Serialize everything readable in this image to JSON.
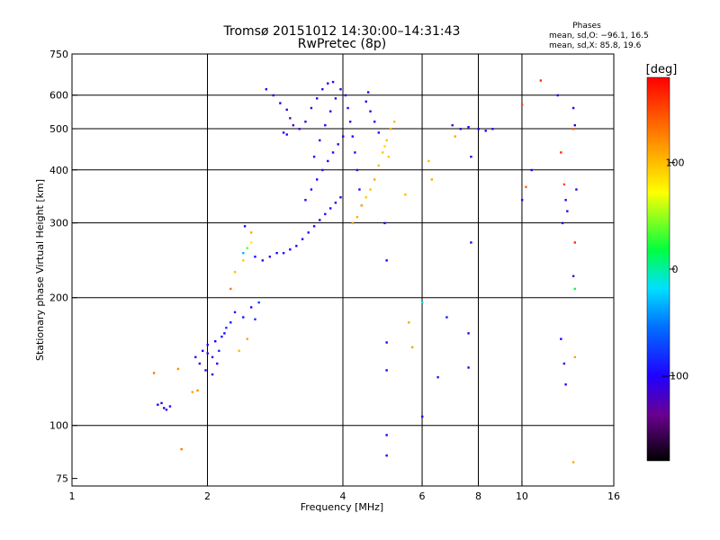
{
  "chart_data": {
    "type": "scatter",
    "title": "Tromsø 20151012 14:30:00–14:31:43",
    "subtitle": "RwPretec (8p)",
    "stats": {
      "heading": "Phases",
      "line1": "mean, sd,O: −96.1, 16.5",
      "line2": "mean, sd,X:  85.8, 19.6"
    },
    "xlabel": "Frequency [MHz]",
    "ylabel": "Stationary phase Virtual Height [km]",
    "xscale": "log",
    "yscale": "log",
    "xlim": [
      1,
      16
    ],
    "ylim": [
      72,
      750
    ],
    "xticks": [
      1,
      2,
      4,
      6,
      8,
      10,
      16
    ],
    "yticks": [
      75,
      100,
      200,
      300,
      400,
      500,
      600,
      750
    ],
    "xgrid": [
      2,
      4,
      6,
      8,
      10
    ],
    "ygrid": [
      100,
      200,
      300,
      400,
      500,
      600
    ],
    "grid": true,
    "colorbar": {
      "label": "[deg]",
      "range": [
        -180,
        180
      ],
      "ticks": [
        100,
        0,
        -100
      ],
      "colormap": "rainbow: black → purple → blue → cyan → green → yellow → red"
    },
    "series": [
      {
        "points": [
          [
            1.55,
            112,
            -100
          ],
          [
            1.6,
            110,
            -105
          ],
          [
            1.65,
            111,
            -98
          ],
          [
            1.58,
            113,
            -110
          ],
          [
            1.62,
            109,
            -95
          ],
          [
            1.85,
            120,
            110
          ],
          [
            1.9,
            121,
            120
          ],
          [
            1.75,
            88,
            130
          ],
          [
            1.52,
            133,
            130
          ],
          [
            1.72,
            136,
            120
          ],
          [
            1.88,
            145,
            -95
          ],
          [
            1.95,
            150,
            -100
          ],
          [
            2.0,
            148,
            -110
          ],
          [
            2.05,
            145,
            -90
          ],
          [
            2.1,
            140,
            -100
          ],
          [
            1.92,
            140,
            -105
          ],
          [
            2.0,
            155,
            -95
          ],
          [
            2.08,
            158,
            -100
          ],
          [
            2.15,
            162,
            -90
          ],
          [
            1.98,
            135,
            -100
          ],
          [
            2.05,
            132,
            -110
          ],
          [
            2.12,
            150,
            -85
          ],
          [
            2.2,
            170,
            -80
          ],
          [
            2.25,
            175,
            -95
          ],
          [
            2.18,
            165,
            -100
          ],
          [
            2.3,
            185,
            -90
          ],
          [
            2.4,
            180,
            -95
          ],
          [
            2.5,
            190,
            -100
          ],
          [
            2.55,
            178,
            -80
          ],
          [
            2.6,
            195,
            -75
          ],
          [
            2.45,
            160,
            110
          ],
          [
            2.35,
            150,
            100
          ],
          [
            2.25,
            210,
            130
          ],
          [
            2.3,
            230,
            100
          ],
          [
            2.4,
            245,
            95
          ],
          [
            2.4,
            255,
            -30
          ],
          [
            2.45,
            262,
            40
          ],
          [
            2.5,
            270,
            80
          ],
          [
            2.5,
            285,
            110
          ],
          [
            2.42,
            295,
            -100
          ],
          [
            2.55,
            250,
            -100
          ],
          [
            2.65,
            245,
            -110
          ],
          [
            2.75,
            250,
            -105
          ],
          [
            2.85,
            255,
            -100
          ],
          [
            2.95,
            255,
            -95
          ],
          [
            3.05,
            260,
            -100
          ],
          [
            3.15,
            265,
            -105
          ],
          [
            3.25,
            275,
            -100
          ],
          [
            3.35,
            285,
            -95
          ],
          [
            3.45,
            295,
            -100
          ],
          [
            3.55,
            305,
            -105
          ],
          [
            3.65,
            315,
            -100
          ],
          [
            3.75,
            325,
            -95
          ],
          [
            3.85,
            335,
            -100
          ],
          [
            3.95,
            345,
            -105
          ],
          [
            3.3,
            340,
            -100
          ],
          [
            3.4,
            360,
            -110
          ],
          [
            3.5,
            380,
            -100
          ],
          [
            3.6,
            400,
            -95
          ],
          [
            3.7,
            420,
            -105
          ],
          [
            3.8,
            440,
            -100
          ],
          [
            3.9,
            460,
            -110
          ],
          [
            4.0,
            480,
            -100
          ],
          [
            3.45,
            430,
            -105
          ],
          [
            3.55,
            470,
            -100
          ],
          [
            3.65,
            510,
            -105
          ],
          [
            3.75,
            550,
            -100
          ],
          [
            3.85,
            590,
            -110
          ],
          [
            3.95,
            620,
            -100
          ],
          [
            4.05,
            600,
            -105
          ],
          [
            4.1,
            560,
            -100
          ],
          [
            4.15,
            520,
            -95
          ],
          [
            4.2,
            480,
            -100
          ],
          [
            4.25,
            440,
            -105
          ],
          [
            4.3,
            400,
            -100
          ],
          [
            4.35,
            360,
            -95
          ],
          [
            4.4,
            330,
            -100
          ],
          [
            4.2,
            300,
            110
          ],
          [
            4.3,
            310,
            105
          ],
          [
            4.4,
            330,
            100
          ],
          [
            4.5,
            345,
            95
          ],
          [
            4.6,
            360,
            100
          ],
          [
            4.7,
            380,
            110
          ],
          [
            4.8,
            410,
            100
          ],
          [
            4.9,
            440,
            95
          ],
          [
            5.0,
            470,
            100
          ],
          [
            5.1,
            500,
            105
          ],
          [
            5.2,
            520,
            100
          ],
          [
            4.95,
            455,
            90
          ],
          [
            5.05,
            430,
            95
          ],
          [
            2.7,
            620,
            -100
          ],
          [
            2.8,
            600,
            -105
          ],
          [
            2.9,
            575,
            -100
          ],
          [
            3.0,
            555,
            -110
          ],
          [
            3.05,
            530,
            -130
          ],
          [
            3.1,
            510,
            -125
          ],
          [
            3.2,
            500,
            -120
          ],
          [
            3.3,
            520,
            -115
          ],
          [
            3.4,
            560,
            -120
          ],
          [
            3.5,
            590,
            -110
          ],
          [
            3.6,
            620,
            -105
          ],
          [
            3.7,
            640,
            -100
          ],
          [
            3.8,
            645,
            -95
          ],
          [
            2.95,
            490,
            -100
          ],
          [
            3.0,
            485,
            -105
          ],
          [
            4.5,
            580,
            -100
          ],
          [
            4.6,
            550,
            -105
          ],
          [
            4.7,
            520,
            -100
          ],
          [
            4.8,
            490,
            -95
          ],
          [
            4.55,
            610,
            -100
          ],
          [
            5.5,
            350,
            100
          ],
          [
            6.3,
            380,
            110
          ],
          [
            7.0,
            510,
            -120
          ],
          [
            7.3,
            500,
            -110
          ],
          [
            7.6,
            505,
            -100
          ],
          [
            8.0,
            500,
            -100
          ],
          [
            8.3,
            495,
            -105
          ],
          [
            8.6,
            500,
            -110
          ],
          [
            7.7,
            270,
            -100
          ],
          [
            7.7,
            430,
            -100
          ],
          [
            10.0,
            570,
            150
          ],
          [
            10.2,
            365,
            140
          ],
          [
            10.5,
            400,
            -100
          ],
          [
            11.0,
            650,
            160
          ],
          [
            12.0,
            600,
            -100
          ],
          [
            12.2,
            440,
            160
          ],
          [
            12.4,
            370,
            150
          ],
          [
            12.5,
            340,
            -100
          ],
          [
            12.6,
            320,
            -110
          ],
          [
            12.3,
            300,
            -100
          ],
          [
            13.0,
            560,
            -100
          ],
          [
            13.1,
            510,
            -105
          ],
          [
            13.0,
            500,
            140
          ],
          [
            13.2,
            360,
            -110
          ],
          [
            13.1,
            270,
            160
          ],
          [
            13.0,
            225,
            -120
          ],
          [
            13.1,
            210,
            20
          ],
          [
            12.2,
            160,
            -100
          ],
          [
            12.4,
            140,
            -110
          ],
          [
            12.5,
            125,
            -100
          ],
          [
            13.1,
            145,
            110
          ],
          [
            13.0,
            82,
            110
          ],
          [
            6.0,
            195,
            -20
          ],
          [
            6.0,
            105,
            -100
          ],
          [
            6.8,
            180,
            -90
          ],
          [
            7.6,
            165,
            -100
          ],
          [
            7.6,
            137,
            -100
          ],
          [
            6.5,
            130,
            -90
          ],
          [
            5.0,
            135,
            -100
          ],
          [
            5.0,
            95,
            -100
          ],
          [
            5.0,
            85,
            -100
          ],
          [
            5.0,
            157,
            -100
          ],
          [
            5.6,
            175,
            110
          ],
          [
            5.7,
            153,
            115
          ],
          [
            5.0,
            245,
            -100
          ],
          [
            4.95,
            300,
            -100
          ],
          [
            6.2,
            420,
            100
          ],
          [
            10.0,
            340,
            -100
          ],
          [
            7.1,
            480,
            110
          ]
        ]
      }
    ]
  }
}
